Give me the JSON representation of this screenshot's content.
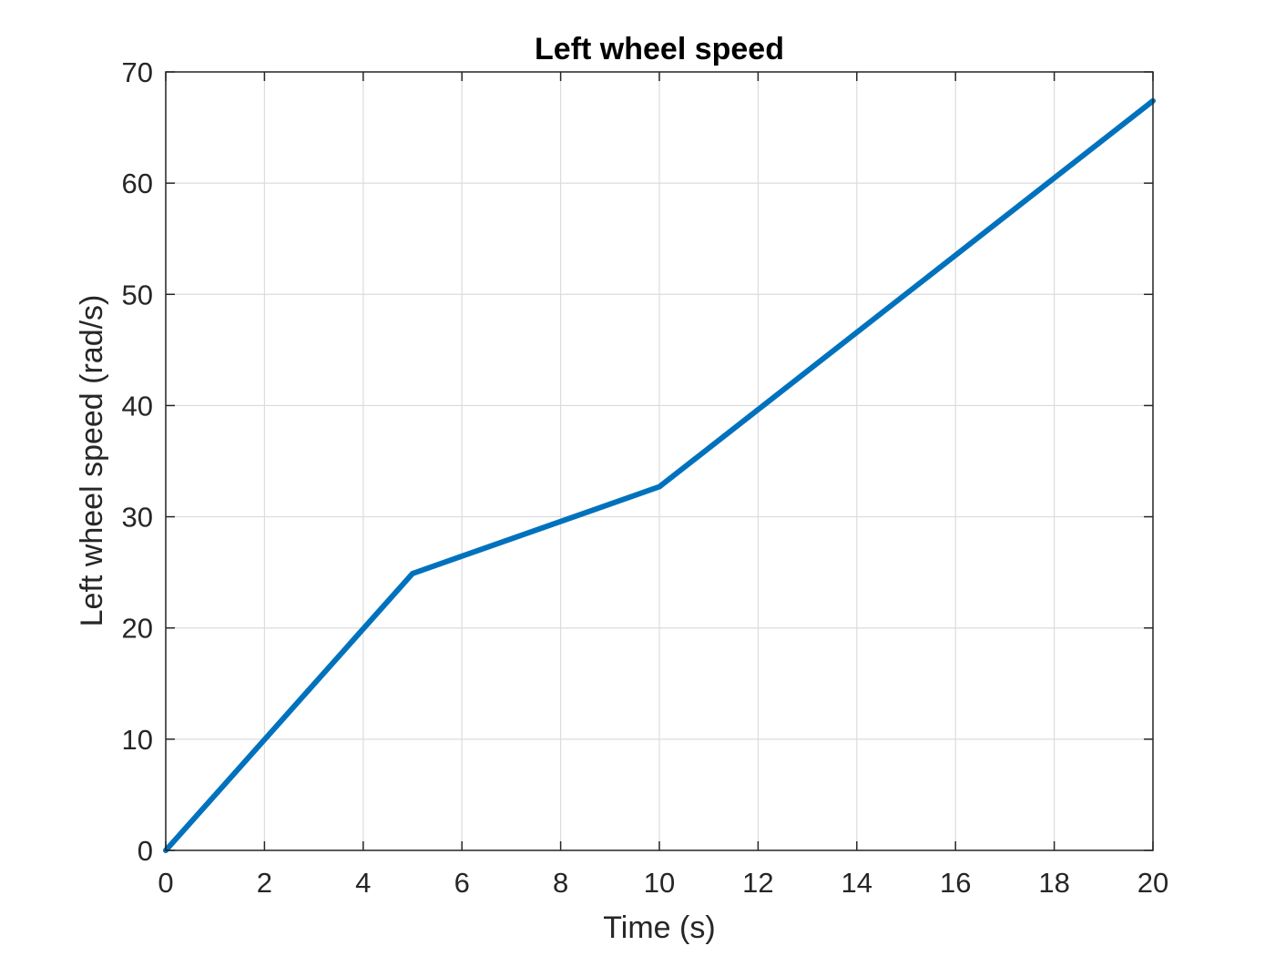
{
  "chart_data": {
    "type": "line",
    "title": "Left wheel speed",
    "xlabel": "Time (s)",
    "ylabel": "Left wheel speed (rad/s)",
    "xlim": [
      0,
      20
    ],
    "ylim": [
      0,
      70
    ],
    "xticks": [
      0,
      2,
      4,
      6,
      8,
      10,
      12,
      14,
      16,
      18,
      20
    ],
    "yticks": [
      0,
      10,
      20,
      30,
      40,
      50,
      60,
      70
    ],
    "grid": true,
    "series": [
      {
        "color": "#0072BD",
        "x": [
          0,
          5,
          10,
          20
        ],
        "y": [
          0,
          24.9,
          32.7,
          67.4
        ]
      }
    ]
  }
}
